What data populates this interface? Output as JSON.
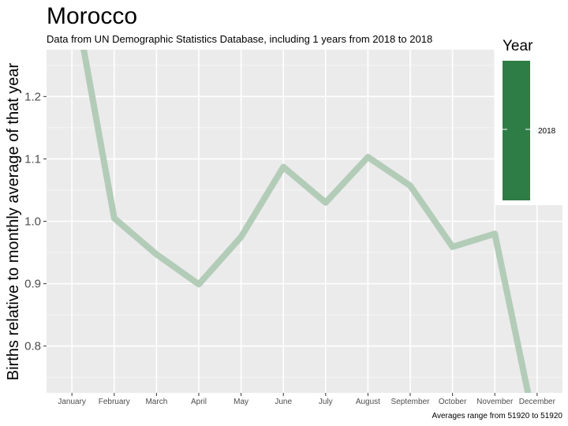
{
  "chart_data": {
    "type": "line",
    "title": "Morocco",
    "subtitle": "Data from UN Demographic Statistics Database, including 1 years from 2018 to 2018",
    "xlabel": "",
    "ylabel": "Births relative to monthly average of that year",
    "caption": "Averages range from 51920 to 51920",
    "categories": [
      "January",
      "February",
      "March",
      "April",
      "May",
      "June",
      "July",
      "August",
      "September",
      "October",
      "November",
      "December"
    ],
    "ylim": [
      0.725,
      1.275
    ],
    "yticks": [
      0.8,
      0.9,
      1.0,
      1.1,
      1.2
    ],
    "ytick_labels": [
      "0.8",
      "0.9",
      "1.0",
      "1.1",
      "1.2"
    ],
    "grid": true,
    "legend": {
      "title": "Year",
      "placement": "right",
      "labels": [
        "2018"
      ]
    },
    "series": [
      {
        "name": "2018",
        "color": "#b3ccb8",
        "values": [
          1.38,
          1.005,
          0.947,
          0.899,
          0.975,
          1.087,
          1.03,
          1.103,
          1.057,
          0.959,
          0.98,
          0.655
        ]
      }
    ],
    "colors": {
      "panel": "#ebebeb",
      "grid_major": "#ffffff",
      "line": "#b3ccb8",
      "legend_bar": "#2e7d46"
    }
  }
}
